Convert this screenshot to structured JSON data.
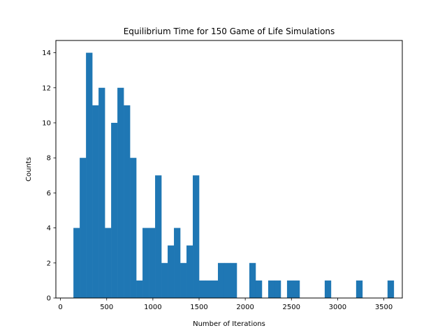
{
  "chart_data": {
    "type": "bar",
    "title": "Equilibrium Time for 150 Game of Life Simulations",
    "xlabel": "Number of Iterations",
    "ylabel": "Counts",
    "xlim": [
      -50,
      3700
    ],
    "ylim": [
      0,
      14.7
    ],
    "x_ticks": [
      0,
      500,
      1000,
      1500,
      2000,
      2500,
      3000,
      3500
    ],
    "y_ticks": [
      0,
      2,
      4,
      6,
      8,
      10,
      12,
      14
    ],
    "bin_start": 140,
    "bin_width": 68,
    "values": [
      4,
      8,
      14,
      11,
      12,
      4,
      10,
      12,
      11,
      8,
      1,
      4,
      4,
      7,
      2,
      3,
      4,
      2,
      3,
      7,
      1,
      1,
      1,
      2,
      2,
      2,
      0,
      0,
      2,
      1,
      0,
      1,
      1,
      0,
      1,
      1,
      0,
      0,
      0,
      0,
      1,
      0,
      0,
      0,
      0,
      1,
      0,
      0,
      0,
      0,
      1
    ],
    "bar_color": "#1f77b4",
    "grid": false,
    "legend": "none"
  }
}
